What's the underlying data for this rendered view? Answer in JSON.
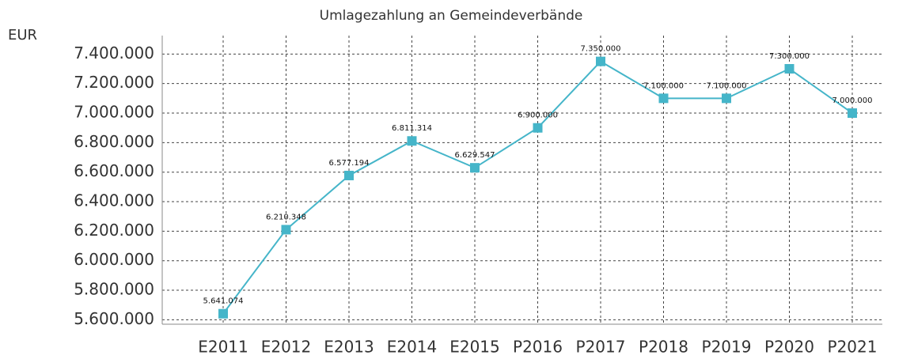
{
  "chart_data": {
    "type": "line",
    "title": "Umlagezahlung an Gemeindeverbände",
    "y_label": "EUR",
    "categories": [
      "E2011",
      "E2012",
      "E2013",
      "E2014",
      "E2015",
      "P2016",
      "P2017",
      "P2018",
      "P2019",
      "P2020",
      "P2021"
    ],
    "series": [
      {
        "name": "Umlagezahlung",
        "color": "#45b5c9",
        "values": [
          5641074,
          6210348,
          6577194,
          6811314,
          6629547,
          6900000,
          7350000,
          7100000,
          7100000,
          7300000,
          7000000
        ],
        "value_labels": [
          "5.641.074",
          "6.210.348",
          "6.577.194",
          "6.811.314",
          "6.629.547",
          "6.900.000",
          "7.350.000",
          "7.100.000",
          "7.100.000",
          "7.300.000",
          "7.000.000"
        ]
      }
    ],
    "ylim": [
      5570000,
      7525000
    ],
    "yticks": [
      {
        "value": 5600000,
        "label": "5.600.000"
      },
      {
        "value": 5800000,
        "label": "5.800.000"
      },
      {
        "value": 6000000,
        "label": "6.000.000"
      },
      {
        "value": 6200000,
        "label": "6.200.000"
      },
      {
        "value": 6400000,
        "label": "6.400.000"
      },
      {
        "value": 6600000,
        "label": "6.600.000"
      },
      {
        "value": 6800000,
        "label": "6.800.000"
      },
      {
        "value": 7000000,
        "label": "7.000.000"
      },
      {
        "value": 7200000,
        "label": "7.200.000"
      },
      {
        "value": 7400000,
        "label": "7.400.000"
      }
    ],
    "grid": true
  }
}
